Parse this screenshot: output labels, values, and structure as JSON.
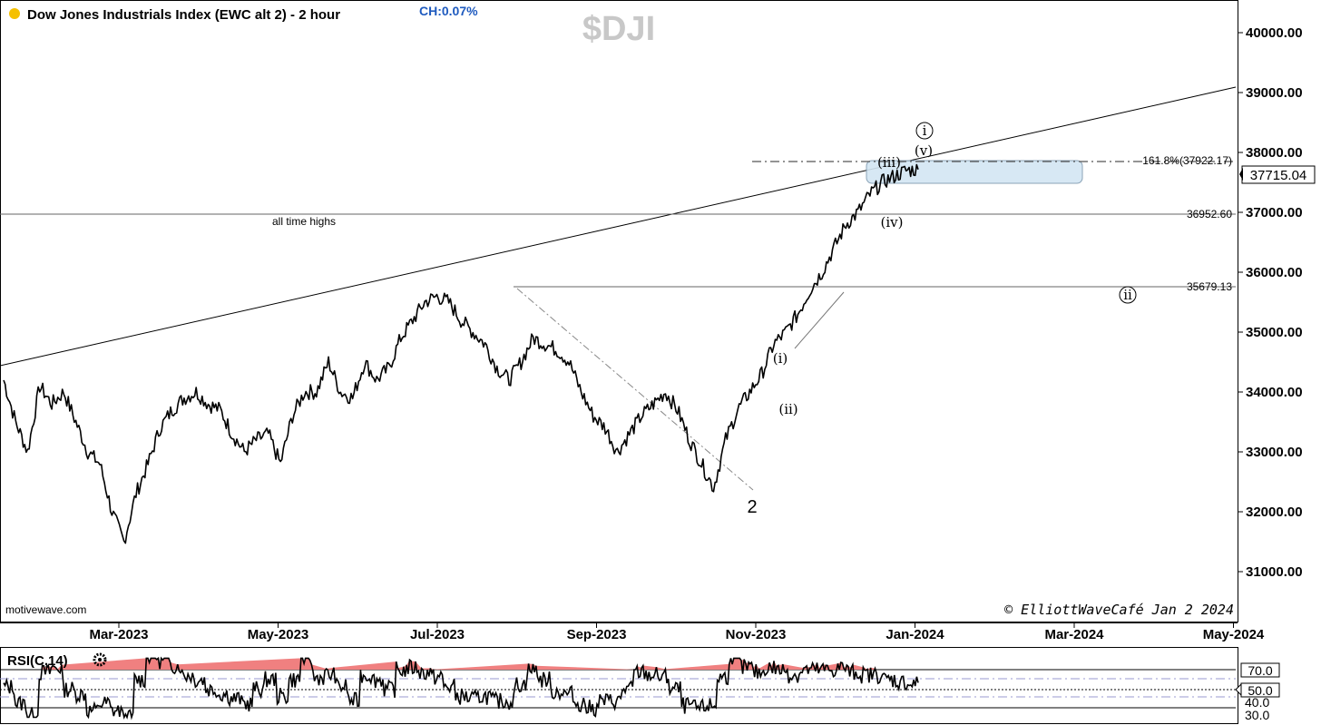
{
  "header": {
    "title": "Dow Jones Industrials Index (EWC alt 2) - 2 hour",
    "change": "CH:0.07%",
    "symbol": "$DJI",
    "status_dot_color": "#f5c000"
  },
  "watermark_left": "motivewave.com",
  "watermark_right": "© ElliottWaveCafé Jan 2 2024",
  "price_axis": {
    "ticks": [
      "40000.00",
      "39000.00",
      "38000.00",
      "37000.00",
      "36000.00",
      "35000.00",
      "34000.00",
      "33000.00",
      "32000.00",
      "31000.00"
    ],
    "current_price": "37715.04"
  },
  "time_axis": {
    "ticks": [
      "Mar-2023",
      "May-2023",
      "Jul-2023",
      "Sep-2023",
      "Nov-2023",
      "Jan-2024",
      "Mar-2024",
      "May-2024"
    ]
  },
  "annotations": {
    "all_time_highs": "all time highs",
    "fib_label": "161.8%(37922.17)",
    "level_36952": "36952.60",
    "level_35679": "35679.13",
    "waves": {
      "w2": "2",
      "wi": "(i)",
      "wii": "(ii)",
      "wiii": "(iii)",
      "wiv": "(iv)",
      "wv": "(v)",
      "circle_i": "i",
      "circle_ii": "ii"
    }
  },
  "rsi": {
    "label": "RSI(C,14)",
    "levels": [
      "70.0",
      "50.0",
      "40.0",
      "30.0"
    ],
    "overbought_color": "#f08080"
  },
  "chart_data": {
    "type": "line",
    "title": "Dow Jones Industrials Index (EWC alt 2) - 2 hour",
    "xlabel": "",
    "ylabel": "",
    "x_ticks": [
      "Mar-2023",
      "May-2023",
      "Jul-2023",
      "Sep-2023",
      "Nov-2023",
      "Jan-2024",
      "Mar-2024",
      "May-2024"
    ],
    "ylim": [
      30500,
      40800
    ],
    "series": [
      {
        "values": [
          34200,
          33500,
          33000,
          34100,
          33800,
          34000,
          33500,
          33000,
          32800,
          32000,
          31500,
          32300,
          32800,
          33400,
          33700,
          33900,
          34000,
          33800,
          33700,
          33300,
          33000,
          33200,
          33300,
          32800,
          33600,
          34000,
          34000,
          34500,
          34000,
          33900,
          34500,
          34200,
          34400,
          34900,
          35200,
          35500,
          35600,
          35500,
          35200,
          35000,
          34800,
          34400,
          34200,
          34500,
          34900,
          34800,
          34700,
          34500,
          34000,
          33600,
          33400,
          33000,
          33300,
          33600,
          33800,
          34000,
          33700,
          33200,
          32800,
          32400,
          33200,
          33700,
          34000,
          34300,
          34800,
          35000,
          35300,
          35700,
          36000,
          36400,
          36800,
          37000,
          37300,
          37500,
          37600,
          37700,
          37715
        ]
      }
    ],
    "horizontal_levels": [
      {
        "value": 37922.17,
        "label": "161.8%(37922.17)"
      },
      {
        "value": 36952.6,
        "label": "36952.60"
      },
      {
        "value": 35679.13,
        "label": "35679.13"
      }
    ],
    "rsi": {
      "name": "RSI(C,14)",
      "ticks": [
        70.0,
        50.0,
        40.0,
        30.0
      ]
    },
    "grid": false,
    "legend": "none"
  }
}
